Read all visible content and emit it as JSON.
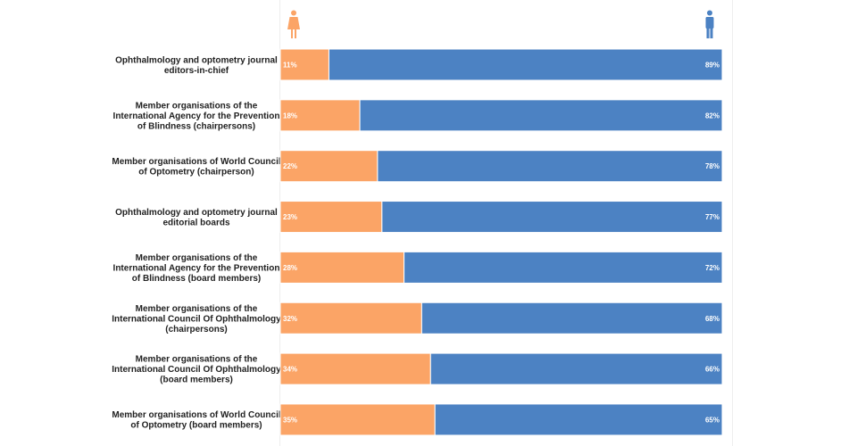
{
  "colors": {
    "women": "#FBA466",
    "men": "#4C82C3",
    "divider": "#EEEEEE"
  },
  "icons": {
    "women": "female-figure-icon",
    "men": "male-figure-icon"
  },
  "chart_data": {
    "type": "bar",
    "orientation": "horizontal",
    "stacked": true,
    "normalized": true,
    "value_format": "percent",
    "xlim": [
      0,
      100
    ],
    "categories": [
      [
        "Ophthalmology and optometry journal",
        "editors-in-chief"
      ],
      [
        "Member organisations of the",
        "International Agency for the Prevention",
        "of Blindness (chairpersons)"
      ],
      [
        "Member organisations of World Council",
        "of Optometry (chairperson)"
      ],
      [
        "Ophthalmology and optometry journal",
        "editorial boards"
      ],
      [
        "Member organisations of the",
        "International Agency for the Prevention",
        "of Blindness (board members)"
      ],
      [
        "Member organisations of the",
        "International Council Of Ophthalmology",
        "(chairpersons)"
      ],
      [
        "Member organisations of the",
        "International Council Of Ophthalmology",
        "(board members)"
      ],
      [
        "Member organisations of World Council",
        "of Optometry (board members)"
      ]
    ],
    "series": [
      {
        "values": [
          11,
          18,
          22,
          23,
          28,
          32,
          34,
          35
        ]
      },
      {
        "values": [
          89,
          82,
          78,
          77,
          72,
          68,
          66,
          65
        ]
      }
    ]
  }
}
